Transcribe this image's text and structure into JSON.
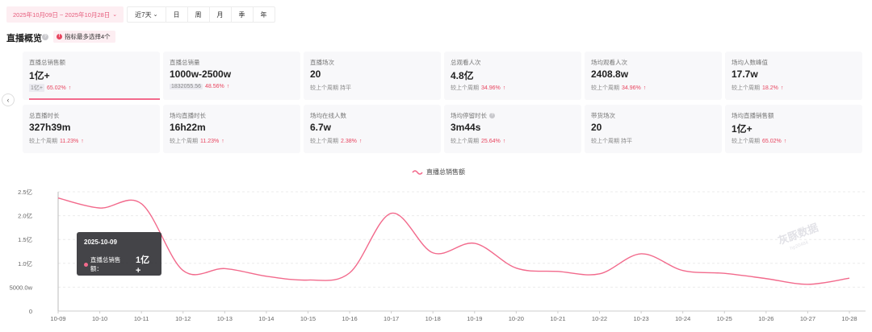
{
  "filters": {
    "date_range": "2025年10月09日 ~ 2025年10月28日",
    "quick_range": "近7天",
    "granularity": [
      "日",
      "周",
      "月",
      "季",
      "年"
    ]
  },
  "section": {
    "title": "直播概览",
    "tip": "指标最多选择4个"
  },
  "metrics": [
    {
      "label": "直播总销售额",
      "value": "1亿+",
      "compare_prefix": "1亿+",
      "compare_text": "",
      "change": "65.02%",
      "active": true
    },
    {
      "label": "直播总销量",
      "value": "1000w-2500w",
      "compare_prefix": "1832055.56",
      "compare_text": "",
      "change": "48.56%"
    },
    {
      "label": "直播场次",
      "value": "20",
      "compare_text": "较上个周期 持平",
      "change": ""
    },
    {
      "label": "总观看人次",
      "value": "4.8亿",
      "compare_text": "较上个周期",
      "change": "34.96%"
    },
    {
      "label": "场均观看人次",
      "value": "2408.8w",
      "compare_text": "较上个周期",
      "change": "34.96%"
    },
    {
      "label": "场均人数峰值",
      "value": "17.7w",
      "compare_text": "较上个周期",
      "change": "18.2%"
    },
    {
      "label": "总直播时长",
      "value": "327h39m",
      "compare_text": "较上个周期",
      "change": "11.23%"
    },
    {
      "label": "场均直播时长",
      "value": "16h22m",
      "compare_text": "较上个周期",
      "change": "11.23%"
    },
    {
      "label": "场均在线人数",
      "value": "6.7w",
      "compare_text": "较上个周期",
      "change": "2.38%"
    },
    {
      "label": "场均停留时长",
      "value": "3m44s",
      "compare_text": "较上个周期",
      "change": "25.64%",
      "has_info": true
    },
    {
      "label": "带货场次",
      "value": "20",
      "compare_text": "较上个周期 持平",
      "change": ""
    },
    {
      "label": "场均直播销售额",
      "value": "1亿+",
      "compare_text": "较上个周期",
      "change": "65.02%"
    }
  ],
  "tooltip": {
    "date": "2025-10-09",
    "series_label": "直播总销售额：",
    "value": "1亿+"
  },
  "watermark": {
    "main": "灰豚数据",
    "sub": "hp20484"
  },
  "colors": {
    "accent": "#f26a8c",
    "up": "#e8455f"
  },
  "chart_data": {
    "type": "line",
    "legend": "直播总销售额",
    "legend_position": "top-center",
    "x": [
      "10-09",
      "10-10",
      "10-11",
      "10-12",
      "10-13",
      "10-14",
      "10-15",
      "10-16",
      "10-17",
      "10-18",
      "10-19",
      "10-20",
      "10-21",
      "10-22",
      "10-23",
      "10-24",
      "10-25",
      "10-26",
      "10-27",
      "10-28"
    ],
    "y_ticks": [
      "0",
      "5000.0w",
      "1.0亿",
      "1.5亿",
      "2.0亿",
      "2.5亿"
    ],
    "ylim": [
      0,
      250000000
    ],
    "series": [
      {
        "name": "直播总销售额",
        "values": [
          237000000,
          216000000,
          225000000,
          85000000,
          89000000,
          73000000,
          65000000,
          80000000,
          205000000,
          122000000,
          142000000,
          90000000,
          83000000,
          78000000,
          120000000,
          85000000,
          79000000,
          68000000,
          56000000,
          69000000
        ]
      }
    ],
    "grid": "horizontal-dashed"
  }
}
